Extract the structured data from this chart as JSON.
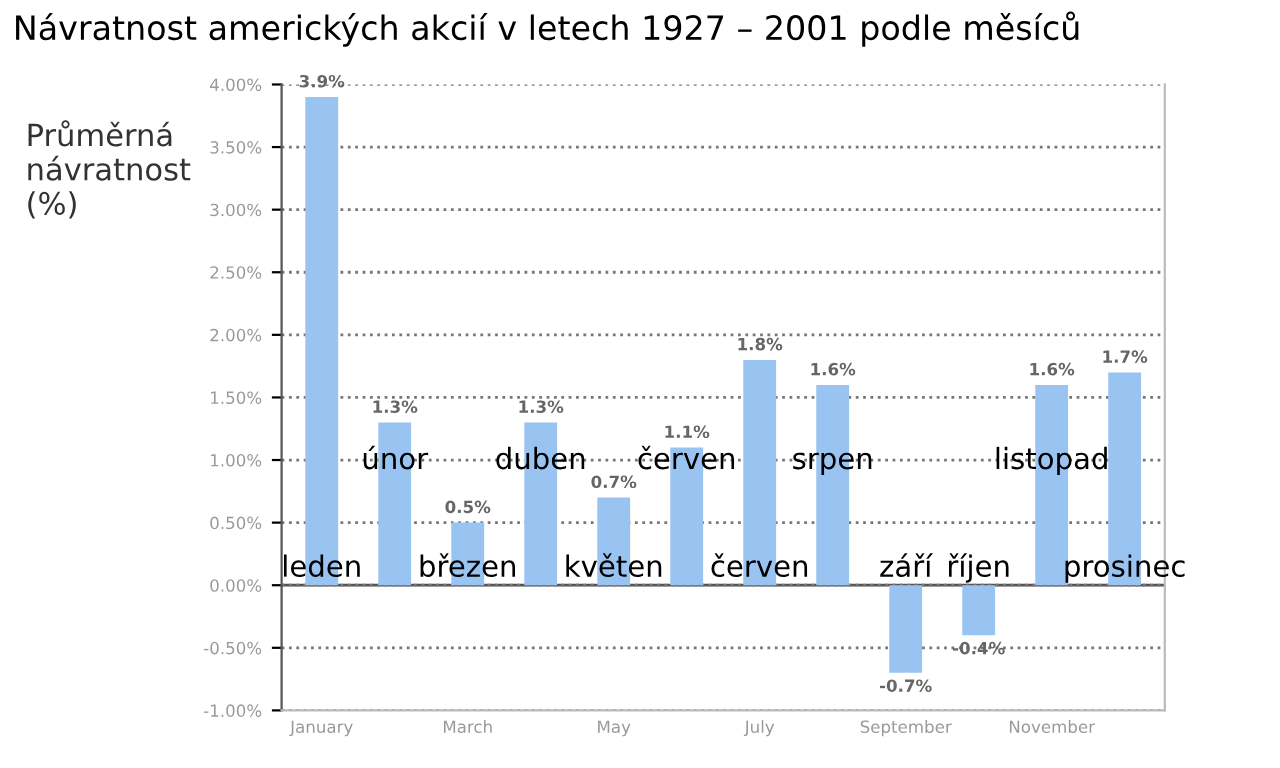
{
  "chart_data": {
    "type": "bar",
    "title": "Návratnost amerických akcií v letech 1927 – 2001 podle měsíců",
    "ylabel": "Průměrná\nnávratnost\n(%)",
    "categories": [
      "January",
      null,
      "March",
      null,
      "May",
      null,
      "July",
      null,
      "September",
      null,
      "November",
      null
    ],
    "values": [
      3.9,
      1.3,
      0.5,
      1.3,
      0.7,
      1.1,
      1.8,
      1.6,
      -0.7,
      -0.4,
      1.6,
      1.7
    ],
    "value_labels": [
      "3.9%",
      "1.3%",
      "0.5%",
      "1.3%",
      "0.7%",
      "1.1%",
      "1.8%",
      "1.6%",
      "-0.7%",
      "-0.4%",
      "1.6%",
      "1.7%"
    ],
    "color": "#99c4f2",
    "ylim": [
      -1,
      4
    ],
    "yticks": [
      {
        "value": -1,
        "label": "-1.00%"
      },
      {
        "value": -0.5,
        "label": "-0.50%"
      },
      {
        "value": 0,
        "label": "0.00%"
      },
      {
        "value": 0.5,
        "label": "0.50%"
      },
      {
        "value": 1,
        "label": "1.00%"
      },
      {
        "value": 1.5,
        "label": "1.50%"
      },
      {
        "value": 2,
        "label": "2.00%"
      },
      {
        "value": 2.5,
        "label": "2.50%"
      },
      {
        "value": 3,
        "label": "3.00%"
      },
      {
        "value": 3.5,
        "label": "3.50%"
      },
      {
        "value": 4,
        "label": "4.00%"
      }
    ],
    "grid": "y",
    "line_style": "dotted",
    "annotations": [
      "leden",
      "únor",
      "březen",
      "duben",
      "květen",
      "červen",
      "červen",
      "srpen",
      "září",
      "říjen",
      "listopad",
      "prosinec"
    ]
  }
}
